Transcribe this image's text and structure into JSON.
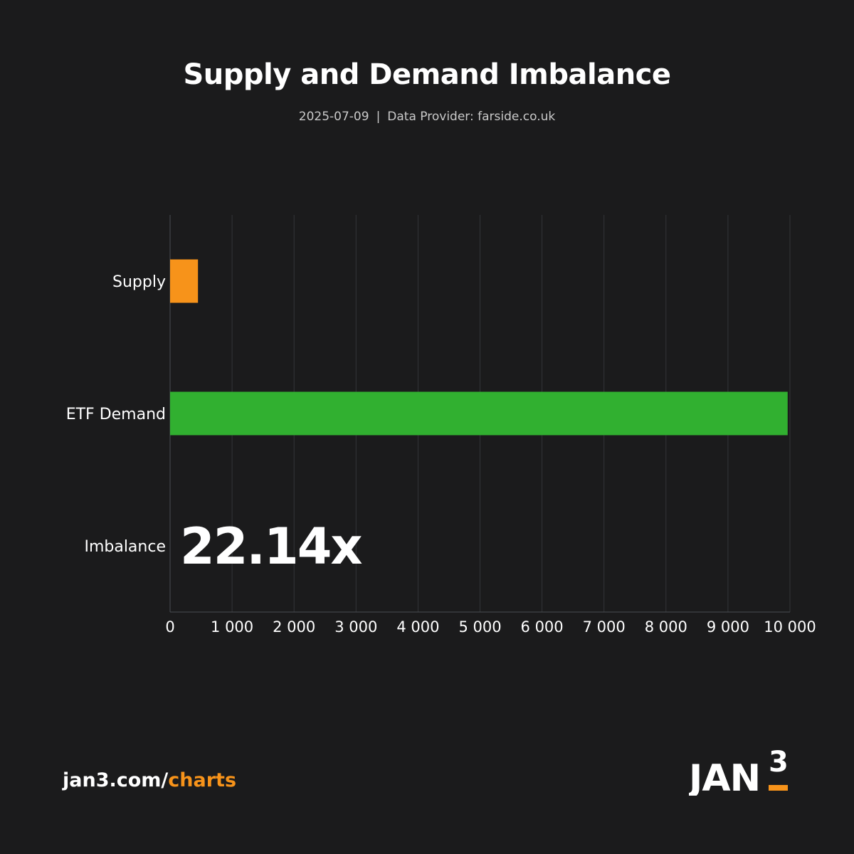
{
  "header": {
    "title": "Supply and Demand Imbalance",
    "date": "2025-07-09",
    "separator": "|",
    "provider": "Data Provider: farside.co.uk"
  },
  "chart_data": {
    "type": "bar",
    "orientation": "horizontal",
    "categories": [
      "Supply",
      "ETF Demand",
      "Imbalance"
    ],
    "values": [
      450,
      9963,
      null
    ],
    "colors": [
      "#f7931a",
      "#31b030",
      null
    ],
    "annotation": {
      "category": "Imbalance",
      "text": "22.14x"
    },
    "xlim": [
      0,
      10000
    ],
    "xticks": [
      0,
      1000,
      2000,
      3000,
      4000,
      5000,
      6000,
      7000,
      8000,
      9000,
      10000
    ],
    "xtick_labels": [
      "0",
      "1 000",
      "2 000",
      "3 000",
      "4 000",
      "5 000",
      "6 000",
      "7 000",
      "8 000",
      "9 000",
      "10 000"
    ],
    "grid": true,
    "title": "Supply and Demand Imbalance",
    "xlabel": "",
    "ylabel": ""
  },
  "footer": {
    "link_prefix": "jan3.com/",
    "link_accent": "charts",
    "logo_text": "JAN",
    "logo_sup": "3"
  },
  "colors": {
    "background": "#1b1b1c",
    "accent": "#f7931a",
    "grid": "#333539",
    "axis": "#4a4d52"
  }
}
